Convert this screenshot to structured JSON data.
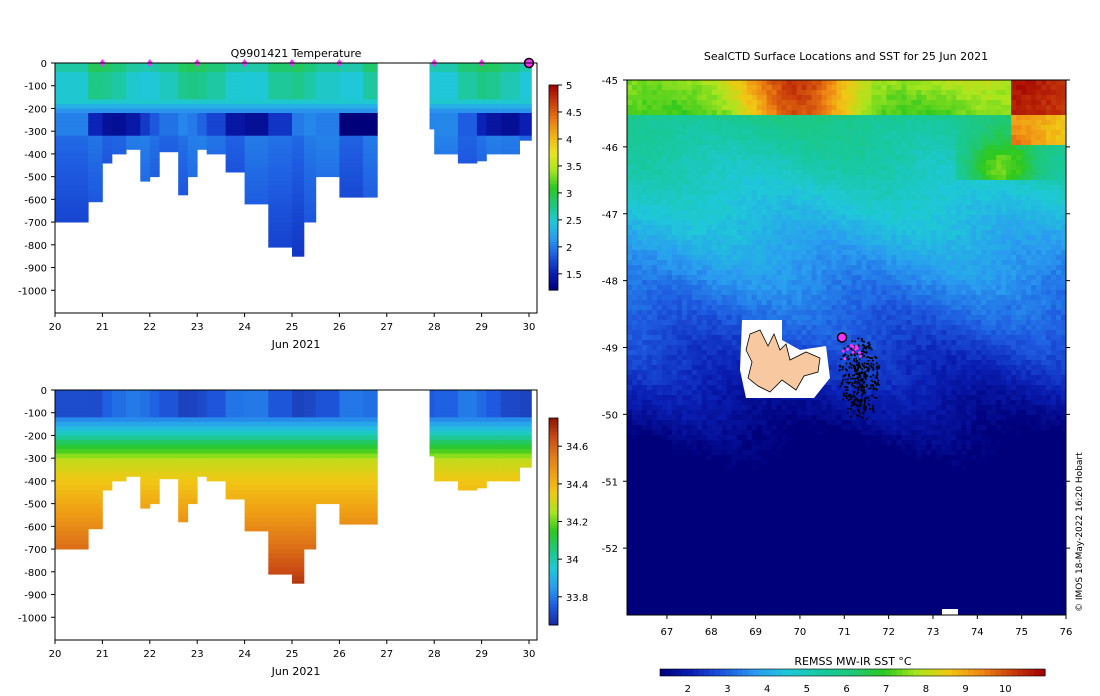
{
  "colors": {
    "temp_scale": [
      "#00007a",
      "#0a1fb4",
      "#1e5ae0",
      "#2a9cf0",
      "#1fc8d8",
      "#1ec87a",
      "#2ec81e",
      "#a8e61e",
      "#e8e61e",
      "#f0b414",
      "#e87814",
      "#c83c0a",
      "#a00000"
    ],
    "sal_scale": [
      "#1a2a9c",
      "#1e5ae0",
      "#2a9cf0",
      "#1fc8d8",
      "#1ec87a",
      "#2ec81e",
      "#a8e61e",
      "#f0c814",
      "#f0a014",
      "#e07818",
      "#c84a14",
      "#8c1400"
    ],
    "sst_scale": [
      "#00007a",
      "#0a1fb4",
      "#1e5ae0",
      "#2a9cf0",
      "#1fc8d8",
      "#18c8a0",
      "#1ec87a",
      "#2ec81e",
      "#a8e61e",
      "#f0c814",
      "#f08a14",
      "#c83c0a",
      "#a00000"
    ],
    "marker": "#ff33ff",
    "land": "#f8c8a0"
  },
  "chart_data": [
    {
      "type": "heatmap",
      "title": "Q9901421  Temperature",
      "xlabel": "Jun 2021",
      "x_ticks": [
        "20",
        "21",
        "22",
        "23",
        "24",
        "25",
        "26",
        "27",
        "28",
        "29",
        "30"
      ],
      "x_range": [
        20,
        30
      ],
      "y_ticks": [
        "0",
        "-100",
        "-200",
        "-300",
        "-400",
        "-500",
        "-600",
        "-700",
        "-800",
        "-900",
        "-1000"
      ],
      "y_range": [
        -1100,
        0
      ],
      "colorbar": {
        "range": [
          1.2,
          5.0
        ],
        "ticks": [
          "5",
          "4.5",
          "4",
          "3.5",
          "3",
          "2.5",
          "2",
          "1.5"
        ],
        "tick_values": [
          5,
          4.5,
          4,
          3.5,
          3,
          2.5,
          2,
          1.5
        ]
      },
      "surface_markers": [
        21,
        22,
        23,
        24,
        25,
        26,
        28,
        29
      ],
      "current_marker": 30,
      "profiles": [
        {
          "day": 20.0,
          "depth": 700
        },
        {
          "day": 20.7,
          "depth": 610
        },
        {
          "day": 21.0,
          "depth": 440
        },
        {
          "day": 21.2,
          "depth": 400
        },
        {
          "day": 21.5,
          "depth": 380
        },
        {
          "day": 21.8,
          "depth": 520
        },
        {
          "day": 22.0,
          "depth": 500
        },
        {
          "day": 22.2,
          "depth": 390
        },
        {
          "day": 22.6,
          "depth": 580
        },
        {
          "day": 22.8,
          "depth": 500
        },
        {
          "day": 23.0,
          "depth": 380
        },
        {
          "day": 23.2,
          "depth": 400
        },
        {
          "day": 23.6,
          "depth": 480
        },
        {
          "day": 24.0,
          "depth": 620
        },
        {
          "day": 24.5,
          "depth": 810
        },
        {
          "day": 25.0,
          "depth": 850
        },
        {
          "day": 25.25,
          "depth": 700
        },
        {
          "day": 25.5,
          "depth": 500
        },
        {
          "day": 26.0,
          "depth": 590
        },
        {
          "day": 26.5,
          "depth": 590
        },
        {
          "day": 27.9,
          "depth": 290
        },
        {
          "day": 28.0,
          "depth": 400
        },
        {
          "day": 28.5,
          "depth": 440
        },
        {
          "day": 28.9,
          "depth": 430
        },
        {
          "day": 29.1,
          "depth": 400
        },
        {
          "day": 29.4,
          "depth": 400
        },
        {
          "day": 29.8,
          "depth": 340
        }
      ],
      "profiles_end": 26.8,
      "gap": [
        26.8,
        27.9
      ],
      "final_end": 30.05
    },
    {
      "type": "heatmap",
      "title": "",
      "xlabel": "Jun 2021",
      "x_ticks": [
        "20",
        "21",
        "22",
        "23",
        "24",
        "25",
        "26",
        "27",
        "28",
        "29",
        "30"
      ],
      "x_range": [
        20,
        30
      ],
      "y_ticks": [
        "0",
        "-100",
        "-200",
        "-300",
        "-400",
        "-500",
        "-600",
        "-700",
        "-800",
        "-900",
        "-1000"
      ],
      "y_range": [
        -1100,
        0
      ],
      "colorbar": {
        "range": [
          33.65,
          34.75
        ],
        "ticks": [
          "34.6",
          "34.4",
          "34.2",
          "34",
          "33.8"
        ],
        "tick_values": [
          34.6,
          34.4,
          34.2,
          34.0,
          33.8
        ]
      }
    },
    {
      "type": "heatmap",
      "title": "SealCTD Surface Locations and SST for 25 Jun 2021",
      "x_ticks": [
        "67",
        "68",
        "69",
        "70",
        "71",
        "72",
        "73",
        "74",
        "75",
        "76"
      ],
      "x_range": [
        66.1,
        76.0
      ],
      "y_ticks": [
        "-45",
        "-46",
        "-47",
        "-48",
        "-49",
        "-50",
        "-51",
        "-52"
      ],
      "y_range": [
        -53.0,
        -45.0
      ],
      "colorbar": {
        "label": "REMSS MW-IR SST °C",
        "range": [
          1.3,
          11.0
        ],
        "ticks": [
          "2",
          "3",
          "4",
          "5",
          "6",
          "7",
          "8",
          "9",
          "10"
        ],
        "tick_values": [
          2,
          3,
          4,
          5,
          6,
          7,
          8,
          9,
          10
        ]
      },
      "island_label": "",
      "tracks_near": [
        71.2,
        -49.4
      ],
      "current_location": [
        70.95,
        -48.85
      ]
    }
  ],
  "credit": "© IMOS 18-May-2022 16:20 Hobart"
}
